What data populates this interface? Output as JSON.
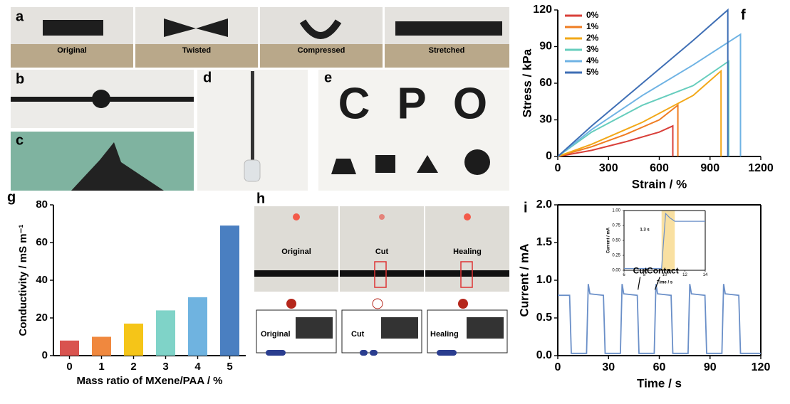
{
  "panel_labels": [
    "a",
    "b",
    "c",
    "d",
    "e",
    "f",
    "g",
    "h",
    "i"
  ],
  "photos": {
    "a_labels": [
      "Original",
      "Twisted",
      "Compressed",
      "Stretched"
    ],
    "e_letters": [
      "C",
      "P",
      "O"
    ],
    "h_labels": [
      "Original",
      "Cut",
      "Healing"
    ],
    "h_schematic_labels": [
      "Original",
      "Cut",
      "Healing"
    ]
  },
  "chart_data": [
    {
      "type": "line",
      "xlabel": "Strain / %",
      "ylabel": "Stress / kPa",
      "xlim": [
        0,
        1200
      ],
      "xticks": [
        0,
        300,
        600,
        900,
        1200
      ],
      "ylim": [
        0,
        120
      ],
      "yticks": [
        0,
        30,
        60,
        90,
        120
      ],
      "legend": "upper left",
      "series": [
        {
          "name": "0%",
          "color": "#d9403a",
          "x": [
            0,
            200,
            400,
            600,
            680,
            680
          ],
          "values": [
            0,
            5,
            12,
            20,
            25,
            0
          ]
        },
        {
          "name": "1%",
          "color": "#ef7d22",
          "x": [
            0,
            200,
            400,
            600,
            710,
            710
          ],
          "values": [
            0,
            8,
            18,
            30,
            42,
            0
          ]
        },
        {
          "name": "2%",
          "color": "#f2a818",
          "x": [
            0,
            200,
            500,
            800,
            965,
            965
          ],
          "values": [
            0,
            10,
            28,
            50,
            70,
            0
          ]
        },
        {
          "name": "3%",
          "color": "#66cdbd",
          "x": [
            0,
            200,
            500,
            800,
            1010,
            1010
          ],
          "values": [
            0,
            20,
            42,
            58,
            78,
            0
          ]
        },
        {
          "name": "4%",
          "color": "#6fb3e4",
          "x": [
            0,
            200,
            500,
            800,
            1080,
            1080
          ],
          "values": [
            0,
            22,
            50,
            75,
            100,
            0
          ]
        },
        {
          "name": "5%",
          "color": "#3f6fb5",
          "x": [
            0,
            200,
            500,
            800,
            1005,
            1005
          ],
          "values": [
            0,
            25,
            60,
            95,
            120,
            0
          ]
        }
      ]
    },
    {
      "type": "bar",
      "xlabel": "Mass ratio of MXene/PAA / %",
      "ylabel": "Conductivity / mS m⁻¹",
      "categories": [
        "0",
        "1",
        "2",
        "3",
        "4",
        "5"
      ],
      "values": [
        8,
        10,
        17,
        24,
        31,
        69
      ],
      "colors": [
        "#d9534f",
        "#f0883e",
        "#f5c518",
        "#7fd3c8",
        "#6fb3e0",
        "#4a7fc1"
      ],
      "ylim": [
        0,
        80
      ],
      "yticks": [
        0,
        20,
        40,
        60,
        80
      ]
    },
    {
      "type": "line",
      "xlabel": "Time / s",
      "ylabel": "Current / mA",
      "xlim": [
        0,
        120
      ],
      "xticks": [
        0,
        30,
        60,
        90,
        120
      ],
      "ylim": [
        0,
        2.0
      ],
      "yticks": [
        {
          "value": 0,
          "label": "0.0"
        },
        0.5,
        {
          "value": 1,
          "label": "1.0"
        },
        1.5,
        {
          "value": 2,
          "label": "2.0"
        }
      ],
      "annotations": [
        "Cut",
        "Contact"
      ],
      "series": [
        {
          "color": "#6a8fc8",
          "x": [
            0,
            7,
            8,
            17,
            18,
            19,
            27,
            28,
            37,
            38,
            39,
            47,
            48,
            57,
            58,
            59,
            67,
            68,
            77,
            78,
            79,
            87,
            88,
            97,
            98,
            99,
            107,
            108,
            120
          ],
          "values": [
            0.8,
            0.8,
            0.03,
            0.03,
            0.95,
            0.82,
            0.8,
            0.03,
            0.03,
            0.95,
            0.82,
            0.8,
            0.03,
            0.03,
            0.95,
            0.82,
            0.8,
            0.03,
            0.03,
            0.95,
            0.82,
            0.8,
            0.03,
            0.03,
            0.95,
            0.82,
            0.8,
            0.03,
            0.03
          ]
        }
      ]
    },
    {
      "type": "line",
      "xlabel": "Time / s",
      "ylabel": "Current / mA",
      "xlim": [
        6,
        14
      ],
      "xticks": [
        6,
        8,
        10,
        12,
        14
      ],
      "ylim": [
        0,
        1
      ],
      "yticks": [
        {
          "value": 0,
          "label": "0.00"
        },
        0.25,
        {
          "value": 0.5,
          "label": "0.50"
        },
        0.75,
        {
          "value": 1,
          "label": "1.00"
        }
      ],
      "highlight": [
        9.7,
        11
      ],
      "annotations": [
        "1.3 s"
      ],
      "series": [
        {
          "color": "#6a8fc8",
          "x": [
            6,
            9.7,
            10.1,
            10.5,
            11,
            14
          ],
          "values": [
            0.03,
            0.03,
            0.95,
            0.88,
            0.82,
            0.82
          ]
        }
      ]
    }
  ]
}
